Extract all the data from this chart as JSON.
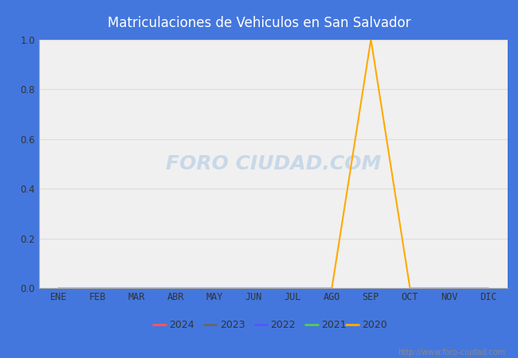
{
  "title": "Matriculaciones de Vehiculos en San Salvador",
  "title_bg_color": "#4477dd",
  "title_text_color": "#ffffff",
  "plot_bg_color": "#f0f0f0",
  "fig_bg_color": "#4477dd",
  "x_labels": [
    "ENE",
    "FEB",
    "MAR",
    "ABR",
    "MAY",
    "JUN",
    "JUL",
    "AGO",
    "SEP",
    "OCT",
    "NOV",
    "DIC"
  ],
  "ylim": [
    0.0,
    1.0
  ],
  "yticks": [
    0.0,
    0.2,
    0.4,
    0.6,
    0.8,
    1.0
  ],
  "series": [
    {
      "year": "2024",
      "color": "#ff5555",
      "data": [
        null,
        null,
        null,
        null,
        null,
        null,
        null,
        null,
        null,
        null,
        null,
        null
      ]
    },
    {
      "year": "2023",
      "color": "#666666",
      "data": [
        null,
        null,
        null,
        null,
        null,
        null,
        null,
        null,
        null,
        null,
        null,
        null
      ]
    },
    {
      "year": "2022",
      "color": "#5555ff",
      "data": [
        null,
        null,
        null,
        null,
        null,
        null,
        null,
        null,
        null,
        null,
        null,
        null
      ]
    },
    {
      "year": "2021",
      "color": "#55cc55",
      "data": [
        null,
        null,
        null,
        null,
        null,
        null,
        null,
        null,
        null,
        null,
        null,
        null
      ]
    },
    {
      "year": "2020",
      "color": "#ffaa00",
      "data": [
        0.0,
        0.0,
        0.0,
        0.0,
        0.0,
        0.0,
        0.0,
        0.0,
        1.0,
        0.0,
        0.0,
        0.0
      ]
    }
  ],
  "legend_bg_color": "#ffffff",
  "legend_border_color": "#999999",
  "watermark": "FORO CIUDAD.COM",
  "watermark_color": "#c8d8e8",
  "url_text": "http://www.foro-ciudad.com",
  "url_color": "#888888",
  "grid_color": "#dddddd",
  "axis_label_color": "#333333",
  "plot_border_color": "#aaaaaa"
}
